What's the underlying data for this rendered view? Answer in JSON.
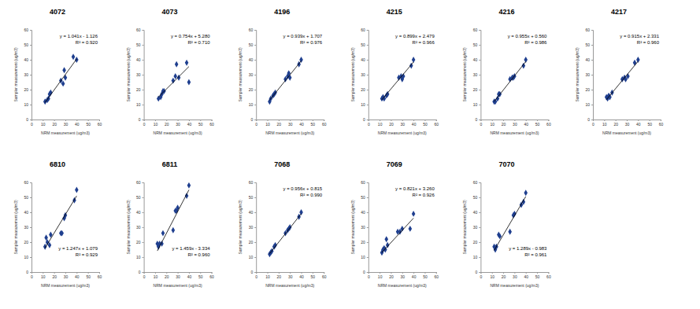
{
  "chart_data": [
    {
      "type": "scatter",
      "title": "4072",
      "x_label": "NRM measurement (ug/m3)",
      "y_label": "Sampler measurement (ug/m3)",
      "xlim": [
        0,
        60
      ],
      "ylim": [
        0,
        60
      ],
      "xticks": [
        0,
        10,
        20,
        30,
        40,
        50,
        60
      ],
      "yticks": [
        0,
        10,
        20,
        30,
        40,
        50,
        60
      ],
      "annotations": [
        "y = 1.041x - 1.126",
        "R² = 0.920"
      ],
      "series": [
        {
          "type": "scatter",
          "marker": "diamond",
          "color": "#1f3f8f",
          "x": [
            12,
            14,
            15,
            16,
            17,
            26,
            28,
            29,
            30,
            37,
            40
          ],
          "values": [
            12,
            13,
            14,
            17,
            18,
            26,
            24,
            33,
            28,
            42,
            40
          ]
        },
        {
          "type": "line",
          "line_style": "solid",
          "color": "#000000",
          "x": [
            12,
            40
          ],
          "values": [
            11.37,
            40.51
          ]
        }
      ]
    },
    {
      "type": "scatter",
      "title": "4073",
      "x_label": "NRM measurement (ug/m3)",
      "y_label": "Sampler measurement (ug/m3)",
      "xlim": [
        0,
        60
      ],
      "ylim": [
        0,
        60
      ],
      "xticks": [
        0,
        10,
        20,
        30,
        40,
        50,
        60
      ],
      "yticks": [
        0,
        10,
        20,
        30,
        40,
        50,
        60
      ],
      "annotations": [
        "y = 0.754x + 5.280",
        "R² = 0.710"
      ],
      "series": [
        {
          "type": "scatter",
          "marker": "diamond",
          "color": "#1f3f8f",
          "x": [
            13,
            15,
            16,
            17,
            18,
            26,
            28,
            29,
            31,
            38,
            40
          ],
          "values": [
            14,
            15,
            17,
            19,
            19,
            26,
            29,
            37,
            28,
            38,
            25
          ]
        },
        {
          "type": "line",
          "line_style": "solid",
          "color": "#000000",
          "x": [
            13,
            40
          ],
          "values": [
            15.08,
            35.44
          ]
        }
      ]
    },
    {
      "type": "scatter",
      "title": "4196",
      "x_label": "NRM measurement (ug/m3)",
      "y_label": "Sampler measurement (ug/m3)",
      "xlim": [
        0,
        60
      ],
      "ylim": [
        0,
        60
      ],
      "xticks": [
        0,
        10,
        20,
        30,
        40,
        50,
        60
      ],
      "yticks": [
        0,
        10,
        20,
        30,
        40,
        50,
        60
      ],
      "annotations": [
        "y = 0.939x + 1.707",
        "R² = 0.976"
      ],
      "series": [
        {
          "type": "scatter",
          "marker": "diamond",
          "color": "#1f3f8f",
          "x": [
            12,
            13,
            15,
            16,
            17,
            26,
            28,
            29,
            30,
            38,
            40
          ],
          "values": [
            12,
            14,
            16,
            17,
            18,
            27,
            29,
            31,
            28,
            37,
            40
          ]
        },
        {
          "type": "line",
          "line_style": "solid",
          "color": "#000000",
          "x": [
            12,
            40
          ],
          "values": [
            12.98,
            39.27
          ]
        }
      ]
    },
    {
      "type": "scatter",
      "title": "4215",
      "x_label": "NRM measurement (ug/m3)",
      "y_label": "Sampler measurement (ug/m3)",
      "xlim": [
        0,
        60
      ],
      "ylim": [
        0,
        60
      ],
      "xticks": [
        0,
        10,
        20,
        30,
        40,
        50,
        60
      ],
      "yticks": [
        0,
        10,
        20,
        30,
        40,
        50,
        60
      ],
      "annotations": [
        "y = 0.899x + 2.479",
        "R² = 0.966"
      ],
      "series": [
        {
          "type": "scatter",
          "marker": "diamond",
          "color": "#1f3f8f",
          "x": [
            12,
            13,
            14,
            16,
            17,
            27,
            29,
            30,
            31,
            38,
            40
          ],
          "values": [
            14,
            15,
            14,
            16,
            17,
            28,
            29,
            27,
            29,
            36,
            40
          ]
        },
        {
          "type": "line",
          "line_style": "solid",
          "color": "#000000",
          "x": [
            12,
            40
          ],
          "values": [
            13.27,
            38.44
          ]
        }
      ]
    },
    {
      "type": "scatter",
      "title": "4216",
      "x_label": "NRM measurement (ug/m3)",
      "y_label": "Sampler measurement (ug/m3)",
      "xlim": [
        0,
        60
      ],
      "ylim": [
        0,
        60
      ],
      "xticks": [
        0,
        10,
        20,
        30,
        40,
        50,
        60
      ],
      "yticks": [
        0,
        10,
        20,
        30,
        40,
        50,
        60
      ],
      "annotations": [
        "y = 0.955x + 0.560",
        "R² = 0.986"
      ],
      "series": [
        {
          "type": "scatter",
          "marker": "diamond",
          "color": "#1f3f8f",
          "x": [
            12,
            13,
            15,
            16,
            17,
            26,
            28,
            29,
            30,
            38,
            40
          ],
          "values": [
            12,
            12,
            14,
            17,
            17,
            27,
            28,
            28,
            29,
            36,
            40
          ]
        },
        {
          "type": "line",
          "line_style": "solid",
          "color": "#000000",
          "x": [
            12,
            40
          ],
          "values": [
            12.02,
            38.76
          ]
        }
      ]
    },
    {
      "type": "scatter",
      "title": "4217",
      "x_label": "NRM measurement (ug/m3)",
      "y_label": "Sampler measurement (ug/m3)",
      "xlim": [
        0,
        60
      ],
      "ylim": [
        0,
        60
      ],
      "xticks": [
        0,
        10,
        20,
        30,
        40,
        50,
        60
      ],
      "yticks": [
        0,
        10,
        20,
        30,
        40,
        50,
        60
      ],
      "annotations": [
        "y = 0.915x + 2.331",
        "R² = 0.960"
      ],
      "series": [
        {
          "type": "scatter",
          "marker": "diamond",
          "color": "#1f3f8f",
          "x": [
            12,
            13,
            14,
            15,
            17,
            26,
            28,
            29,
            31,
            37,
            40
          ],
          "values": [
            15,
            14,
            16,
            15,
            18,
            27,
            28,
            27,
            29,
            38,
            40
          ]
        },
        {
          "type": "line",
          "line_style": "solid",
          "color": "#000000",
          "x": [
            12,
            40
          ],
          "values": [
            13.31,
            38.93
          ]
        }
      ]
    },
    {
      "type": "scatter",
      "title": "6810",
      "x_label": "NRM measurement (ug/m3)",
      "y_label": "Sampler measurement (ug/m3)",
      "xlim": [
        0,
        60
      ],
      "ylim": [
        0,
        60
      ],
      "xticks": [
        0,
        10,
        20,
        30,
        40,
        50,
        60
      ],
      "yticks": [
        0,
        10,
        20,
        30,
        40,
        50,
        60
      ],
      "annotations": [
        "y = 1.247x + 1.079",
        "R² = 0.929"
      ],
      "series": [
        {
          "type": "scatter",
          "marker": "diamond",
          "color": "#1f3f8f",
          "x": [
            12,
            13,
            14,
            16,
            17,
            26,
            27,
            29,
            30,
            38,
            40
          ],
          "values": [
            17,
            23,
            20,
            18,
            25,
            26,
            26,
            36,
            38,
            48,
            55
          ]
        },
        {
          "type": "line",
          "line_style": "solid",
          "color": "#000000",
          "x": [
            12,
            40
          ],
          "values": [
            16.04,
            50.96
          ]
        }
      ]
    },
    {
      "type": "scatter",
      "title": "6811",
      "x_label": "NRM measurement (ug/m3)",
      "y_label": "Sampler measurement (ug/m3)",
      "xlim": [
        0,
        60
      ],
      "ylim": [
        0,
        60
      ],
      "xticks": [
        0,
        10,
        20,
        30,
        40,
        50,
        60
      ],
      "yticks": [
        0,
        10,
        20,
        30,
        40,
        50,
        60
      ],
      "annotations": [
        "y = 1.459x - 3.334",
        "R² = 0.960"
      ],
      "series": [
        {
          "type": "scatter",
          "marker": "diamond",
          "color": "#1f3f8f",
          "x": [
            12,
            13,
            14,
            16,
            17,
            26,
            28,
            29,
            30,
            38,
            40
          ],
          "values": [
            19,
            17,
            19,
            19,
            26,
            28,
            41,
            41,
            43,
            51,
            58
          ]
        },
        {
          "type": "line",
          "line_style": "solid",
          "color": "#000000",
          "x": [
            12,
            40
          ],
          "values": [
            14.17,
            55.03
          ]
        }
      ]
    },
    {
      "type": "scatter",
      "title": "7068",
      "x_label": "NRM measurement (ug/m3)",
      "y_label": "Sampler measurement (ug/m3)",
      "xlim": [
        0,
        60
      ],
      "ylim": [
        0,
        60
      ],
      "xticks": [
        0,
        10,
        20,
        30,
        40,
        50,
        60
      ],
      "yticks": [
        0,
        10,
        20,
        30,
        40,
        50,
        60
      ],
      "annotations": [
        "y = 0.956x + 0.815",
        "R² = 0.990"
      ],
      "series": [
        {
          "type": "scatter",
          "marker": "diamond",
          "color": "#1f3f8f",
          "x": [
            12,
            13,
            14,
            16,
            17,
            26,
            28,
            29,
            30,
            38,
            40
          ],
          "values": [
            12,
            13,
            14,
            17,
            18,
            26,
            28,
            29,
            30,
            37,
            40
          ]
        },
        {
          "type": "line",
          "line_style": "solid",
          "color": "#000000",
          "x": [
            12,
            40
          ],
          "values": [
            12.29,
            39.06
          ]
        }
      ]
    },
    {
      "type": "scatter",
      "title": "7069",
      "x_label": "NRM measurement (ug/m3)",
      "y_label": "Sampler measurement (ug/m3)",
      "xlim": [
        0,
        60
      ],
      "ylim": [
        0,
        60
      ],
      "xticks": [
        0,
        10,
        20,
        30,
        40,
        50,
        60
      ],
      "yticks": [
        0,
        10,
        20,
        30,
        40,
        50,
        60
      ],
      "annotations": [
        "y = 0.821x + 3.260",
        "R² = 0.926"
      ],
      "series": [
        {
          "type": "scatter",
          "marker": "diamond",
          "color": "#1f3f8f",
          "x": [
            12,
            13,
            14,
            15,
            16,
            17,
            26,
            28,
            30,
            37,
            40
          ],
          "values": [
            13,
            15,
            16,
            15,
            22,
            18,
            27,
            27,
            29,
            29,
            39
          ]
        },
        {
          "type": "line",
          "line_style": "solid",
          "color": "#000000",
          "x": [
            12,
            40
          ],
          "values": [
            13.11,
            36.1
          ]
        }
      ]
    },
    {
      "type": "scatter",
      "title": "7070",
      "x_label": "NRM measurement (ug/m3)",
      "y_label": "Sampler measurement (ug/m3)",
      "xlim": [
        0,
        60
      ],
      "ylim": [
        0,
        60
      ],
      "xticks": [
        0,
        10,
        20,
        30,
        40,
        50,
        60
      ],
      "yticks": [
        0,
        10,
        20,
        30,
        40,
        50,
        60
      ],
      "annotations": [
        "y = 1.289x - 0.983",
        "R² = 0.961"
      ],
      "series": [
        {
          "type": "scatter",
          "marker": "diamond",
          "color": "#1f3f8f",
          "x": [
            12,
            13,
            14,
            16,
            17,
            26,
            29,
            30,
            36,
            38,
            40
          ],
          "values": [
            17,
            15,
            17,
            25,
            24,
            27,
            38,
            39,
            45,
            47,
            53
          ]
        },
        {
          "type": "line",
          "line_style": "solid",
          "color": "#000000",
          "x": [
            12,
            40
          ],
          "values": [
            14.48,
            50.58
          ]
        }
      ]
    }
  ]
}
